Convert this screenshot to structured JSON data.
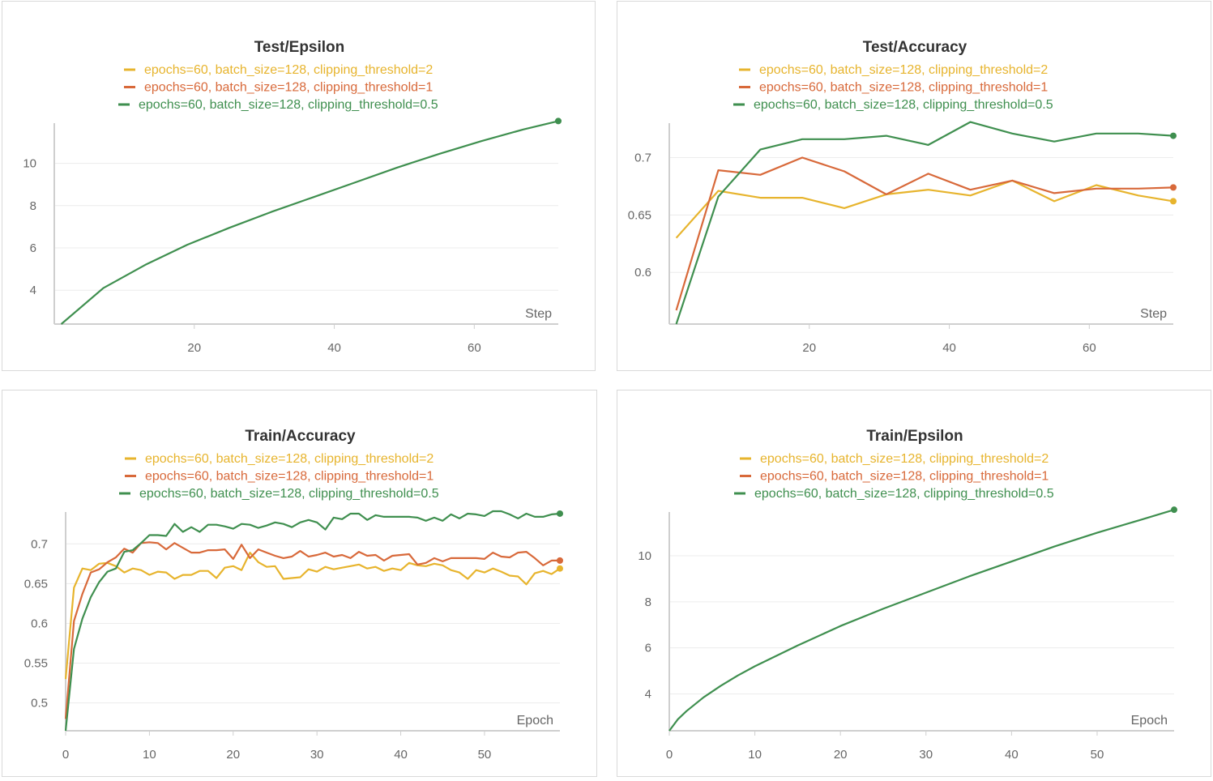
{
  "colors": {
    "clip2": "#e7b42d",
    "clip1": "#d8693a",
    "clip05": "#3f8f4f"
  },
  "legend_labels": [
    "epochs=60, batch_size=128, clipping_threshold=2",
    "epochs=60, batch_size=128, clipping_threshold=1",
    "epochs=60, batch_size=128, clipping_threshold=0.5"
  ],
  "chart_data": [
    {
      "type": "line",
      "title": "Test/Epsilon",
      "xlabel": "Step",
      "ylabel": "",
      "xlim": [
        0,
        72
      ],
      "ylim": [
        2.4,
        11.9
      ],
      "xticks": [
        20,
        40,
        60
      ],
      "yticks": [
        4,
        6,
        8,
        10
      ],
      "series": [
        {
          "name": "epochs=60, batch_size=128, clipping_threshold=0.5",
          "color_key": "clip05",
          "x": [
            1,
            7,
            13,
            19,
            25,
            31,
            37,
            43,
            49,
            55,
            61,
            67,
            72
          ],
          "y": [
            2.4,
            4.1,
            5.2,
            6.15,
            6.95,
            7.7,
            8.4,
            9.1,
            9.8,
            10.45,
            11.05,
            11.6,
            12.0
          ]
        }
      ]
    },
    {
      "type": "line",
      "title": "Test/Accuracy",
      "xlabel": "Step",
      "ylabel": "",
      "xlim": [
        0,
        72
      ],
      "ylim": [
        0.555,
        0.73
      ],
      "xticks": [
        20,
        40,
        60
      ],
      "yticks": [
        0.6,
        0.65,
        0.7
      ],
      "series": [
        {
          "name": "epochs=60, batch_size=128, clipping_threshold=2",
          "color_key": "clip2",
          "x": [
            1,
            7,
            13,
            19,
            25,
            31,
            37,
            43,
            49,
            55,
            61,
            67,
            72
          ],
          "y": [
            0.63,
            0.671,
            0.665,
            0.665,
            0.656,
            0.668,
            0.672,
            0.667,
            0.68,
            0.662,
            0.676,
            0.667,
            0.662
          ]
        },
        {
          "name": "epochs=60, batch_size=128, clipping_threshold=1",
          "color_key": "clip1",
          "x": [
            1,
            7,
            13,
            19,
            25,
            31,
            37,
            43,
            49,
            55,
            61,
            67,
            72
          ],
          "y": [
            0.567,
            0.689,
            0.685,
            0.7,
            0.688,
            0.668,
            0.686,
            0.672,
            0.68,
            0.669,
            0.673,
            0.673,
            0.674
          ]
        },
        {
          "name": "epochs=60, batch_size=128, clipping_threshold=0.5",
          "color_key": "clip05",
          "x": [
            1,
            7,
            13,
            19,
            25,
            31,
            37,
            43,
            49,
            55,
            61,
            67,
            72
          ],
          "y": [
            0.555,
            0.666,
            0.707,
            0.716,
            0.716,
            0.719,
            0.711,
            0.731,
            0.721,
            0.714,
            0.721,
            0.721,
            0.719
          ]
        }
      ]
    },
    {
      "type": "line",
      "title": "Train/Accuracy",
      "xlabel": "Epoch",
      "ylabel": "",
      "xlim": [
        0,
        59
      ],
      "ylim": [
        0.465,
        0.74
      ],
      "xticks": [
        0,
        10,
        20,
        30,
        40,
        50
      ],
      "yticks": [
        0.5,
        0.55,
        0.6,
        0.65,
        0.7
      ],
      "series": [
        {
          "name": "epochs=60, batch_size=128, clipping_threshold=2",
          "color_key": "clip2",
          "x": [
            0,
            1,
            2,
            3,
            4,
            5,
            6,
            7,
            8,
            9,
            10,
            11,
            12,
            13,
            14,
            15,
            16,
            17,
            18,
            19,
            20,
            21,
            22,
            23,
            24,
            25,
            26,
            27,
            28,
            29,
            30,
            31,
            32,
            33,
            34,
            35,
            36,
            37,
            38,
            39,
            40,
            41,
            42,
            43,
            44,
            45,
            46,
            47,
            48,
            49,
            50,
            51,
            52,
            53,
            54,
            55,
            56,
            57,
            58,
            59
          ],
          "y": [
            0.53,
            0.645,
            0.669,
            0.667,
            0.675,
            0.676,
            0.672,
            0.664,
            0.669,
            0.667,
            0.661,
            0.665,
            0.664,
            0.656,
            0.661,
            0.661,
            0.666,
            0.666,
            0.657,
            0.67,
            0.672,
            0.667,
            0.689,
            0.677,
            0.671,
            0.672,
            0.656,
            0.657,
            0.658,
            0.668,
            0.665,
            0.671,
            0.668,
            0.67,
            0.672,
            0.674,
            0.669,
            0.671,
            0.666,
            0.669,
            0.667,
            0.676,
            0.673,
            0.672,
            0.675,
            0.673,
            0.667,
            0.664,
            0.656,
            0.667,
            0.664,
            0.669,
            0.665,
            0.66,
            0.659,
            0.649,
            0.663,
            0.666,
            0.662,
            0.669
          ]
        },
        {
          "name": "epochs=60, batch_size=128, clipping_threshold=1",
          "color_key": "clip1",
          "x": [
            0,
            1,
            2,
            3,
            4,
            5,
            6,
            7,
            8,
            9,
            10,
            11,
            12,
            13,
            14,
            15,
            16,
            17,
            18,
            19,
            20,
            21,
            22,
            23,
            24,
            25,
            26,
            27,
            28,
            29,
            30,
            31,
            32,
            33,
            34,
            35,
            36,
            37,
            38,
            39,
            40,
            41,
            42,
            43,
            44,
            45,
            46,
            47,
            48,
            49,
            50,
            51,
            52,
            53,
            54,
            55,
            56,
            57,
            58,
            59
          ],
          "y": [
            0.48,
            0.603,
            0.637,
            0.664,
            0.668,
            0.677,
            0.683,
            0.694,
            0.689,
            0.701,
            0.702,
            0.701,
            0.693,
            0.701,
            0.695,
            0.689,
            0.689,
            0.692,
            0.692,
            0.693,
            0.681,
            0.699,
            0.682,
            0.693,
            0.689,
            0.685,
            0.682,
            0.684,
            0.691,
            0.684,
            0.686,
            0.689,
            0.684,
            0.686,
            0.682,
            0.69,
            0.685,
            0.686,
            0.679,
            0.685,
            0.686,
            0.687,
            0.674,
            0.676,
            0.682,
            0.678,
            0.682,
            0.682,
            0.682,
            0.682,
            0.681,
            0.689,
            0.684,
            0.683,
            0.689,
            0.69,
            0.682,
            0.673,
            0.679,
            0.679
          ]
        },
        {
          "name": "epochs=60, batch_size=128, clipping_threshold=0.5",
          "color_key": "clip05",
          "x": [
            0,
            1,
            2,
            3,
            4,
            5,
            6,
            7,
            8,
            9,
            10,
            11,
            12,
            13,
            14,
            15,
            16,
            17,
            18,
            19,
            20,
            21,
            22,
            23,
            24,
            25,
            26,
            27,
            28,
            29,
            30,
            31,
            32,
            33,
            34,
            35,
            36,
            37,
            38,
            39,
            40,
            41,
            42,
            43,
            44,
            45,
            46,
            47,
            48,
            49,
            50,
            51,
            52,
            53,
            54,
            55,
            56,
            57,
            58,
            59
          ],
          "y": [
            0.465,
            0.568,
            0.606,
            0.633,
            0.652,
            0.665,
            0.669,
            0.69,
            0.692,
            0.701,
            0.711,
            0.711,
            0.71,
            0.725,
            0.715,
            0.721,
            0.715,
            0.724,
            0.724,
            0.722,
            0.719,
            0.725,
            0.724,
            0.72,
            0.723,
            0.727,
            0.725,
            0.721,
            0.727,
            0.73,
            0.727,
            0.718,
            0.733,
            0.731,
            0.738,
            0.738,
            0.73,
            0.736,
            0.734,
            0.734,
            0.734,
            0.734,
            0.733,
            0.729,
            0.733,
            0.729,
            0.737,
            0.732,
            0.738,
            0.737,
            0.735,
            0.741,
            0.741,
            0.737,
            0.732,
            0.738,
            0.734,
            0.734,
            0.737,
            0.738
          ]
        }
      ]
    },
    {
      "type": "line",
      "title": "Train/Epsilon",
      "xlabel": "Epoch",
      "ylabel": "",
      "xlim": [
        0,
        59
      ],
      "ylim": [
        2.4,
        11.9
      ],
      "xticks": [
        0,
        10,
        20,
        30,
        40,
        50
      ],
      "yticks": [
        4,
        6,
        8,
        10
      ],
      "series": [
        {
          "name": "epochs=60, batch_size=128, clipping_threshold=0.5",
          "color_key": "clip05",
          "x": [
            0,
            1,
            2,
            4,
            6,
            8,
            10,
            15,
            20,
            25,
            30,
            35,
            40,
            45,
            50,
            55,
            59
          ],
          "y": [
            2.4,
            2.9,
            3.25,
            3.85,
            4.35,
            4.8,
            5.2,
            6.1,
            6.95,
            7.7,
            8.4,
            9.1,
            9.75,
            10.4,
            11.0,
            11.55,
            12.0
          ]
        }
      ]
    }
  ]
}
